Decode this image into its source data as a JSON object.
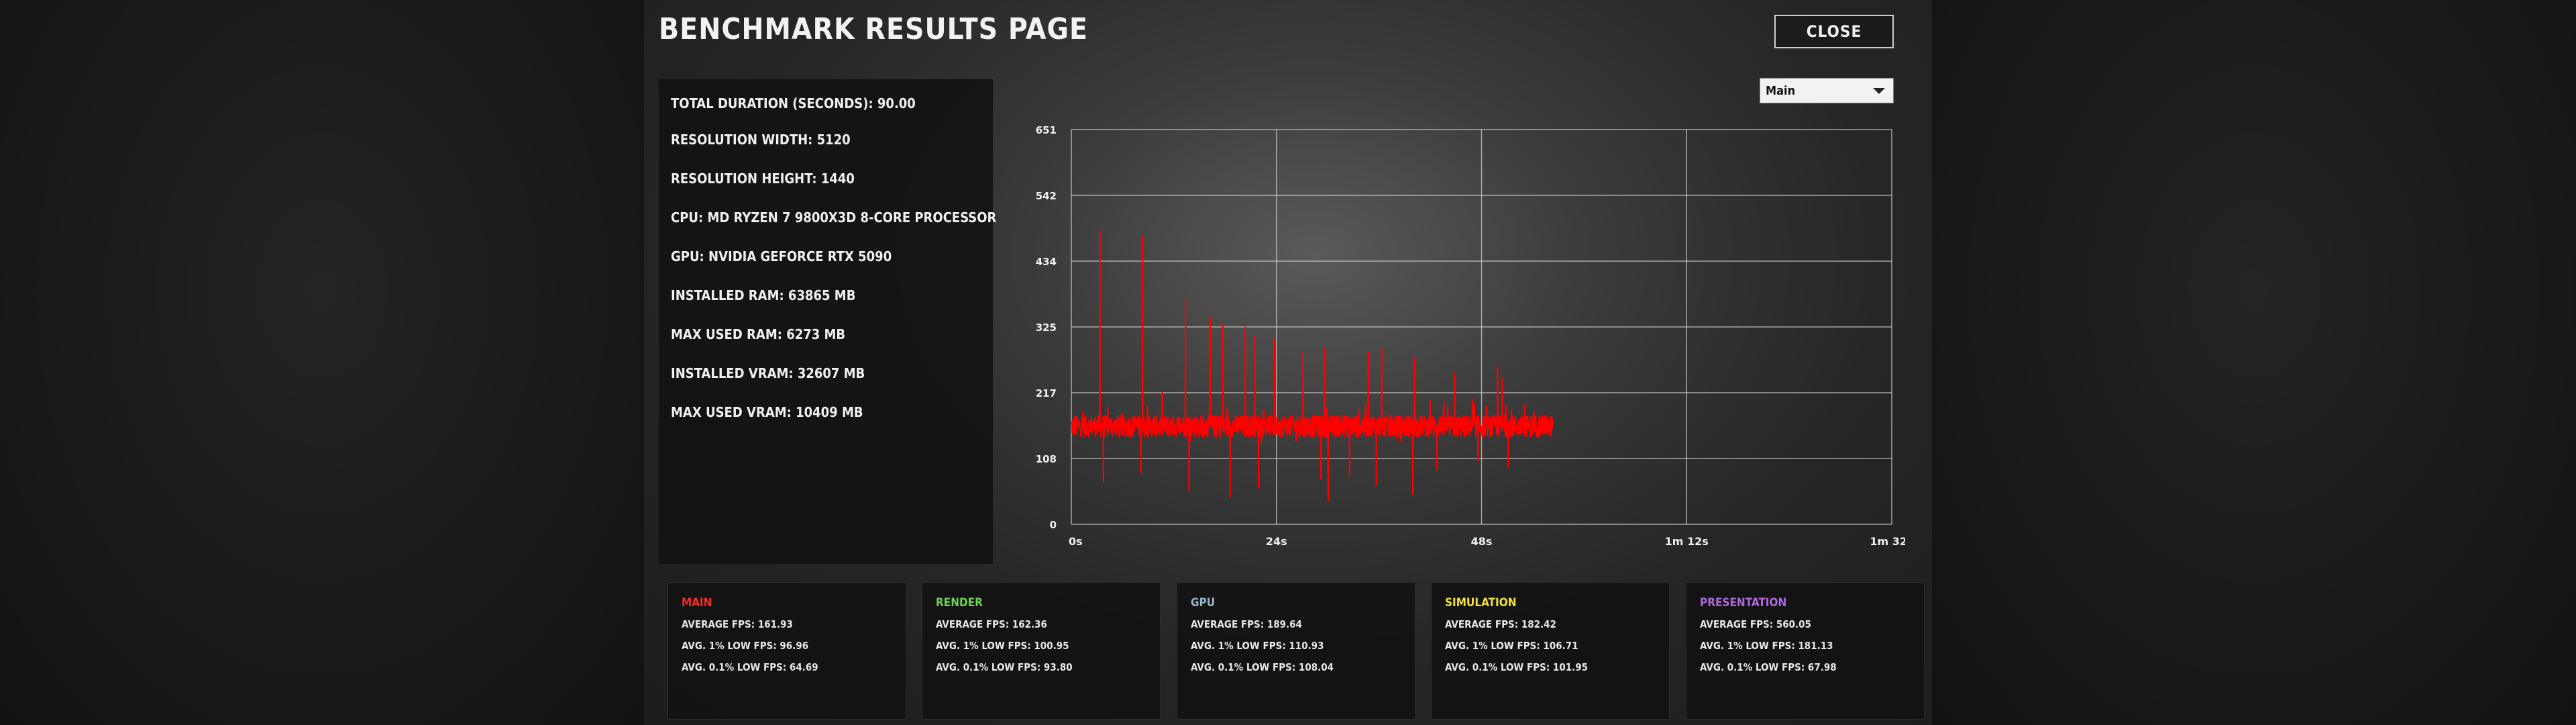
{
  "page": {
    "title": "BENCHMARK RESULTS PAGE",
    "close_label": "CLOSE"
  },
  "info": [
    "TOTAL DURATION (SECONDS): 90.00",
    "RESOLUTION WIDTH: 5120",
    "RESOLUTION HEIGHT: 1440",
    "CPU: MD RYZEN 7 9800X3D 8-CORE PROCESSOR",
    "GPU: NVIDIA GEFORCE RTX 5090",
    "INSTALLED RAM: 63865 MB",
    "MAX USED RAM: 6273 MB",
    "INSTALLED VRAM: 32607 MB",
    "MAX USED VRAM: 10409 MB"
  ],
  "dropdown": {
    "selected": "Main"
  },
  "colors": {
    "line": "#ff0000",
    "main": "#ff2a2a",
    "render": "#6fd35a",
    "gpu": "#9ab6c9",
    "simulation": "#f0e040",
    "presentation": "#b06ae0",
    "grid": "#cfcfcf"
  },
  "chart_data": {
    "type": "line",
    "series_name": "Main",
    "y_ticks": [
      "651",
      "542",
      "434",
      "325",
      "217",
      "108",
      "0"
    ],
    "x_ticks": [
      "0s",
      "24s",
      "48s",
      "1m 12s",
      "1m 32s"
    ],
    "xlim": [
      0,
      92
    ],
    "ylim": [
      0,
      651
    ],
    "x_end": 54,
    "baseline": 162,
    "noise": 18,
    "spikes": [
      [
        3.2,
        485
      ],
      [
        8.0,
        475
      ],
      [
        12.8,
        370
      ],
      [
        15.6,
        340
      ],
      [
        17.0,
        330
      ],
      [
        19.5,
        325
      ],
      [
        20.6,
        310
      ],
      [
        22.8,
        305
      ],
      [
        26.0,
        285
      ],
      [
        28.4,
        290
      ],
      [
        33.3,
        285
      ],
      [
        34.8,
        290
      ],
      [
        38.5,
        275
      ],
      [
        43.0,
        250
      ],
      [
        47.8,
        260
      ],
      [
        48.3,
        240
      ]
    ],
    "dips": [
      [
        3.6,
        70
      ],
      [
        7.8,
        85
      ],
      [
        13.2,
        55
      ],
      [
        17.8,
        45
      ],
      [
        21.0,
        60
      ],
      [
        28.0,
        75
      ],
      [
        28.8,
        40
      ],
      [
        31.2,
        80
      ],
      [
        34.2,
        65
      ],
      [
        38.3,
        50
      ],
      [
        41.0,
        90
      ],
      [
        45.6,
        105
      ],
      [
        49.0,
        95
      ]
    ]
  },
  "stats": [
    {
      "name": "MAIN",
      "avg": "AVERAGE FPS: 161.93",
      "low1": "AVG. 1% LOW FPS: 96.96",
      "low01": "AVG. 0.1% LOW FPS: 64.69"
    },
    {
      "name": "RENDER",
      "avg": "AVERAGE FPS: 162.36",
      "low1": "AVG. 1% LOW FPS: 100.95",
      "low01": "AVG. 0.1% LOW FPS: 93.80"
    },
    {
      "name": "GPU",
      "avg": "AVERAGE FPS: 189.64",
      "low1": "AVG. 1% LOW FPS: 110.93",
      "low01": "AVG. 0.1% LOW FPS: 108.04"
    },
    {
      "name": "SIMULATION",
      "avg": "AVERAGE FPS: 182.42",
      "low1": "AVG. 1% LOW FPS: 106.71",
      "low01": "AVG. 0.1% LOW FPS: 101.95"
    },
    {
      "name": "PRESENTATION",
      "avg": "AVERAGE FPS: 560.05",
      "low1": "AVG. 1% LOW FPS: 181.13",
      "low01": "AVG. 0.1% LOW FPS: 67.98"
    }
  ]
}
